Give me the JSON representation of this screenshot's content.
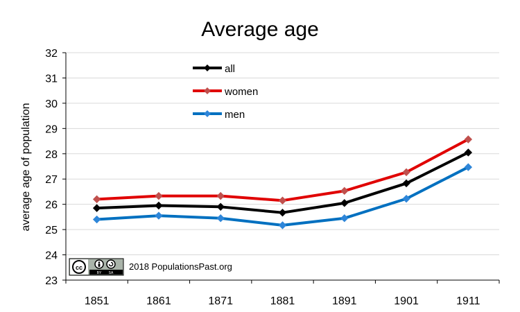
{
  "chart_data": {
    "type": "line",
    "title": "Average age",
    "xlabel": "",
    "ylabel": "average age of population",
    "x": [
      "1851",
      "1861",
      "1871",
      "1881",
      "1891",
      "1901",
      "1911"
    ],
    "ylim": [
      23,
      32
    ],
    "yticks": [
      "23",
      "24",
      "25",
      "26",
      "27",
      "28",
      "29",
      "30",
      "31",
      "32"
    ],
    "grid": true,
    "legend_placement": "top-left",
    "series": [
      {
        "name": "all",
        "color": "#000000",
        "marker_color": "#000000",
        "values": [
          25.85,
          25.95,
          25.9,
          25.67,
          26.05,
          26.83,
          28.05
        ]
      },
      {
        "name": "women",
        "color": "#e00000",
        "marker_color": "#c0504d",
        "values": [
          26.2,
          26.33,
          26.33,
          26.15,
          26.53,
          27.27,
          28.57
        ]
      },
      {
        "name": "men",
        "color": "#0070c0",
        "marker_color": "#2e86d9",
        "values": [
          25.4,
          25.55,
          25.45,
          25.17,
          25.45,
          26.22,
          27.47
        ]
      }
    ],
    "annotation": "2018 PopulationsPast.org",
    "license_badge": {
      "icon": "cc-by-sa-icon",
      "by_text": "BY",
      "sa_text": "SA"
    }
  }
}
